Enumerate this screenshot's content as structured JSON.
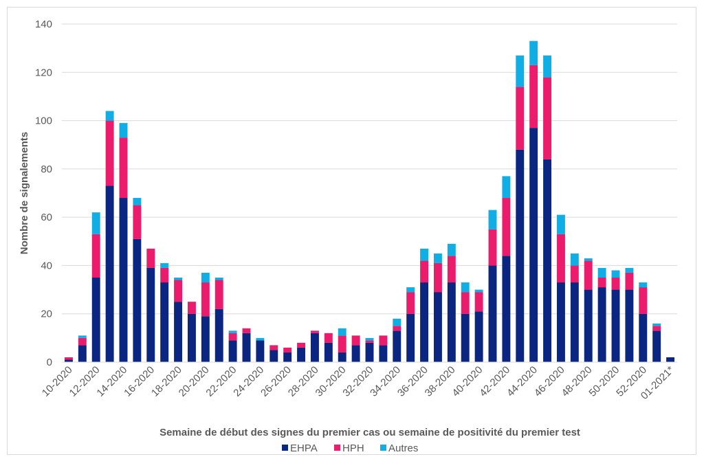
{
  "chart_data": {
    "type": "bar",
    "stacked": true,
    "ylabel": "Nombre de signalements",
    "xlabel": "Semaine de début des signes du premier cas ou semaine de positivité du premier test",
    "ylim": [
      0,
      140
    ],
    "yticks": [
      0,
      20,
      40,
      60,
      80,
      100,
      120,
      140
    ],
    "grid": true,
    "legend_position": "bottom",
    "categories": [
      "10-2020",
      "11-2020",
      "12-2020",
      "13-2020",
      "14-2020",
      "15-2020",
      "16-2020",
      "17-2020",
      "18-2020",
      "19-2020",
      "20-2020",
      "21-2020",
      "22-2020",
      "23-2020",
      "24-2020",
      "25-2020",
      "26-2020",
      "27-2020",
      "28-2020",
      "29-2020",
      "30-2020",
      "31-2020",
      "32-2020",
      "33-2020",
      "34-2020",
      "35-2020",
      "36-2020",
      "37-2020",
      "38-2020",
      "39-2020",
      "40-2020",
      "41-2020",
      "42-2020",
      "43-2020",
      "44-2020",
      "45-2020",
      "46-2020",
      "47-2020",
      "48-2020",
      "49-2020",
      "50-2020",
      "51-2020",
      "52-2020",
      "53-2020",
      "01-2021*"
    ],
    "tick_labels_shown": [
      "10-2020",
      "12-2020",
      "14-2020",
      "16-2020",
      "18-2020",
      "20-2020",
      "22-2020",
      "24-2020",
      "26-2020",
      "28-2020",
      "30-2020",
      "32-2020",
      "34-2020",
      "36-2020",
      "38-2020",
      "40-2020",
      "42-2020",
      "44-2020",
      "46-2020",
      "48-2020",
      "50-2020",
      "52-2020",
      "01-2021*"
    ],
    "series": [
      {
        "name": "EHPA",
        "color": "#0b2680",
        "values": [
          1,
          7,
          35,
          73,
          68,
          51,
          39,
          33,
          25,
          20,
          19,
          22,
          9,
          12,
          9,
          5,
          4,
          6,
          12,
          8,
          4,
          7,
          8,
          7,
          13,
          20,
          33,
          29,
          33,
          20,
          21,
          40,
          44,
          88,
          97,
          84,
          33,
          33,
          30,
          31,
          30,
          30,
          20,
          13,
          2
        ]
      },
      {
        "name": "HPH",
        "color": "#ea1c6b",
        "values": [
          1,
          3,
          18,
          27,
          25,
          14,
          8,
          6,
          9,
          5,
          14,
          12,
          3,
          2,
          0,
          2,
          2,
          2,
          1,
          4,
          7,
          4,
          1,
          4,
          2,
          9,
          9,
          12,
          11,
          9,
          8,
          15,
          24,
          26,
          26,
          34,
          20,
          7,
          12,
          4,
          5,
          7,
          11,
          2,
          0
        ]
      },
      {
        "name": "Autres",
        "color": "#11aee6",
        "values": [
          0,
          1,
          9,
          4,
          6,
          3,
          0,
          2,
          1,
          0,
          4,
          1,
          1,
          0,
          1,
          0,
          0,
          0,
          0,
          0,
          3,
          0,
          1,
          0,
          3,
          2,
          5,
          4,
          5,
          4,
          1,
          8,
          9,
          13,
          10,
          9,
          8,
          5,
          1,
          4,
          3,
          2,
          2,
          1,
          0
        ]
      }
    ]
  }
}
